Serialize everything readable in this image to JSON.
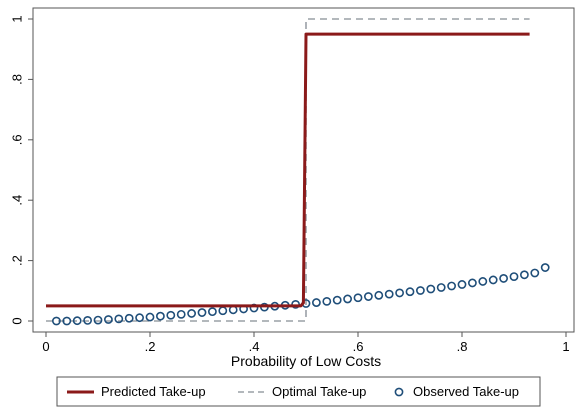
{
  "chart_data": {
    "type": "line",
    "title": "",
    "xlabel": "Probability of Low Costs",
    "ylabel": "",
    "xlim": [
      0,
      1
    ],
    "ylim": [
      0,
      1
    ],
    "xticks": [
      0,
      0.2,
      0.4,
      0.6,
      0.8,
      1
    ],
    "xtick_labels": [
      "0",
      ".2",
      ".4",
      ".6",
      ".8",
      "1"
    ],
    "yticks": [
      0,
      0.2,
      0.4,
      0.6,
      0.8,
      1
    ],
    "ytick_labels": [
      "0",
      ".2",
      ".4",
      ".6",
      ".8",
      "1"
    ],
    "grid": false,
    "legend_position": "bottom",
    "series": [
      {
        "name": "Predicted Take-up",
        "type": "line",
        "style": "solid",
        "color": "#8b1a1a",
        "x": [
          0,
          0.49,
          0.495,
          0.5,
          0.93
        ],
        "y": [
          0.05,
          0.05,
          0.06,
          0.95,
          0.95
        ]
      },
      {
        "name": "Optimal Take-up",
        "type": "line",
        "style": "dashed",
        "color": "#9aa0a6",
        "x": [
          0,
          0.5,
          0.5,
          0.93
        ],
        "y": [
          0,
          0,
          1,
          1
        ]
      },
      {
        "name": "Observed Take-up",
        "type": "scatter",
        "style": "hollow-circle",
        "color": "#1f4e79",
        "x": [
          0.02,
          0.04,
          0.06,
          0.08,
          0.1,
          0.12,
          0.14,
          0.16,
          0.18,
          0.2,
          0.22,
          0.24,
          0.26,
          0.28,
          0.3,
          0.32,
          0.34,
          0.36,
          0.38,
          0.4,
          0.42,
          0.44,
          0.46,
          0.48,
          0.5,
          0.52,
          0.54,
          0.56,
          0.58,
          0.6,
          0.62,
          0.64,
          0.66,
          0.68,
          0.7,
          0.72,
          0.74,
          0.76,
          0.78,
          0.8,
          0.82,
          0.84,
          0.86,
          0.88,
          0.9,
          0.92,
          0.94,
          0.96
        ],
        "y": [
          0,
          0,
          0.001,
          0.002,
          0.003,
          0.005,
          0.007,
          0.009,
          0.011,
          0.013,
          0.016,
          0.019,
          0.022,
          0.025,
          0.028,
          0.031,
          0.034,
          0.037,
          0.04,
          0.043,
          0.046,
          0.049,
          0.052,
          0.055,
          0.058,
          0.061,
          0.065,
          0.069,
          0.073,
          0.077,
          0.081,
          0.085,
          0.089,
          0.093,
          0.097,
          0.101,
          0.106,
          0.111,
          0.116,
          0.121,
          0.126,
          0.131,
          0.136,
          0.141,
          0.147,
          0.153,
          0.159,
          0.177
        ]
      }
    ]
  }
}
